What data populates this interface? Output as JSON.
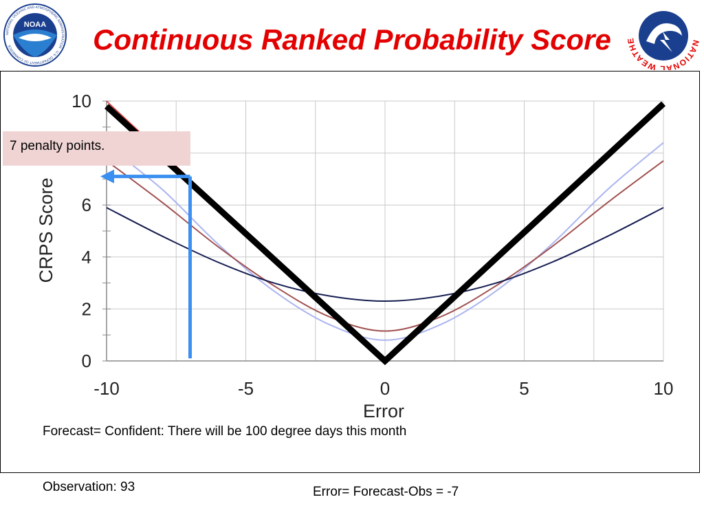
{
  "slide": {
    "title": "Continuous Ranked Probability Score",
    "callout": "7 penalty points.",
    "forecast_text": "Forecast= Confident:  There will be 100 degree days this month",
    "observation_text": "Observation: 93",
    "error_text": "Error= Forecast-Obs = -7"
  },
  "logos": {
    "noaa": {
      "text": "NOAA",
      "ring_text": "NATIONAL OCEANIC AND ATMOSPHERIC ADMINISTRATION · U.S. DEPARTMENT OF COMMERCE"
    },
    "nws": {
      "ring_text": "NATIONAL WEATHER SERVICE"
    }
  },
  "colors": {
    "title": "#e30000",
    "callout_bg": "#f0d4d4",
    "arrow": "#3a8ff0"
  },
  "chart_data": {
    "type": "line",
    "xlabel": "Error",
    "ylabel": "CRPS Score",
    "xlim": [
      -10,
      10
    ],
    "ylim": [
      0,
      10
    ],
    "xticks": [
      -10,
      -5,
      0,
      5,
      10
    ],
    "yticks": [
      0,
      2,
      4,
      6,
      8,
      10
    ],
    "grid": true,
    "series": [
      {
        "color": "#000000",
        "width": 9,
        "points": [
          [
            -10,
            9.8
          ],
          [
            0,
            0
          ],
          [
            10,
            9.9
          ]
        ]
      },
      {
        "color": "#e03030",
        "width": 1.5,
        "points": [
          [
            -10,
            10
          ],
          [
            -7,
            7
          ]
        ]
      },
      {
        "color": "#aab4f0",
        "width": 2,
        "points": [
          [
            -10,
            8.3
          ],
          [
            -8,
            6.6
          ],
          [
            -6,
            4.5
          ],
          [
            -4,
            2.7
          ],
          [
            -2,
            1.4
          ],
          [
            0,
            0.8
          ],
          [
            2,
            1.4
          ],
          [
            4,
            2.7
          ],
          [
            6,
            4.5
          ],
          [
            8,
            6.6
          ],
          [
            10,
            8.4
          ]
        ]
      },
      {
        "color": "#a05050",
        "width": 2,
        "points": [
          [
            -10,
            7.7
          ],
          [
            -8,
            6.1
          ],
          [
            -6,
            4.4
          ],
          [
            -4,
            2.9
          ],
          [
            -2,
            1.7
          ],
          [
            0,
            1.15
          ],
          [
            2,
            1.7
          ],
          [
            4,
            2.9
          ],
          [
            6,
            4.4
          ],
          [
            8,
            6.1
          ],
          [
            10,
            7.7
          ]
        ]
      },
      {
        "color": "#141c50",
        "width": 2,
        "points": [
          [
            -10,
            5.9
          ],
          [
            -8,
            4.8
          ],
          [
            -6,
            3.8
          ],
          [
            -4,
            3.0
          ],
          [
            -2,
            2.5
          ],
          [
            0,
            2.3
          ],
          [
            2,
            2.5
          ],
          [
            4,
            3.0
          ],
          [
            6,
            3.8
          ],
          [
            8,
            4.8
          ],
          [
            10,
            5.9
          ]
        ]
      }
    ],
    "annotations": [
      {
        "type": "arrow",
        "color": "#3a8ff0",
        "from": [
          -7,
          0.1
        ],
        "to": [
          -7,
          7.1
        ]
      },
      {
        "type": "arrow",
        "color": "#3a8ff0",
        "from": [
          -7,
          7.1
        ],
        "to": [
          -10,
          7.1
        ]
      }
    ]
  }
}
